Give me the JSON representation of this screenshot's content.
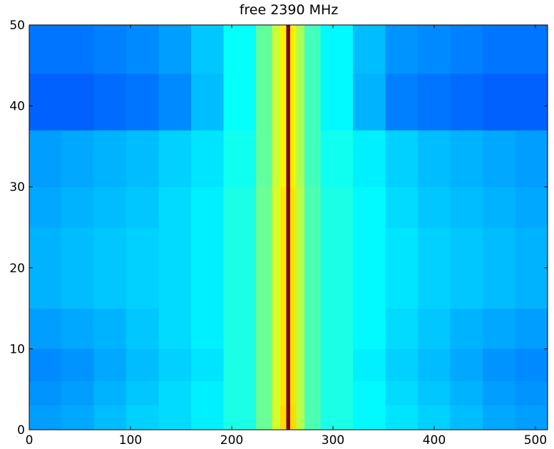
{
  "chart_data": {
    "type": "heatmap",
    "title": "free 2390 MHz",
    "colormap": "jet",
    "x_edges": [
      0,
      32,
      64,
      96,
      128,
      160,
      192,
      224,
      240,
      248,
      254,
      258,
      264,
      272,
      288,
      320,
      352,
      384,
      416,
      448,
      480,
      512
    ],
    "y_edges": [
      0,
      3,
      6,
      10,
      15,
      20,
      25,
      30,
      37,
      44,
      50
    ],
    "values": [
      [
        0.28,
        0.29,
        0.31,
        0.33,
        0.34,
        0.36,
        0.4,
        0.48,
        0.58,
        0.66,
        1.0,
        0.66,
        0.55,
        0.45,
        0.4,
        0.37,
        0.35,
        0.33,
        0.31,
        0.29,
        0.28
      ],
      [
        0.27,
        0.28,
        0.3,
        0.32,
        0.34,
        0.36,
        0.4,
        0.48,
        0.58,
        0.65,
        1.0,
        0.65,
        0.55,
        0.45,
        0.4,
        0.37,
        0.34,
        0.32,
        0.3,
        0.28,
        0.27
      ],
      [
        0.26,
        0.27,
        0.29,
        0.31,
        0.33,
        0.35,
        0.4,
        0.48,
        0.58,
        0.65,
        1.0,
        0.65,
        0.55,
        0.45,
        0.4,
        0.36,
        0.33,
        0.31,
        0.29,
        0.27,
        0.26
      ],
      [
        0.28,
        0.29,
        0.3,
        0.32,
        0.34,
        0.36,
        0.4,
        0.48,
        0.58,
        0.65,
        1.0,
        0.65,
        0.55,
        0.45,
        0.4,
        0.37,
        0.34,
        0.32,
        0.3,
        0.29,
        0.28
      ],
      [
        0.3,
        0.31,
        0.32,
        0.33,
        0.34,
        0.36,
        0.4,
        0.48,
        0.58,
        0.65,
        1.0,
        0.65,
        0.55,
        0.45,
        0.4,
        0.37,
        0.35,
        0.33,
        0.32,
        0.31,
        0.3
      ],
      [
        0.3,
        0.31,
        0.32,
        0.33,
        0.34,
        0.36,
        0.4,
        0.48,
        0.58,
        0.65,
        1.0,
        0.65,
        0.55,
        0.45,
        0.4,
        0.37,
        0.35,
        0.33,
        0.32,
        0.31,
        0.3
      ],
      [
        0.29,
        0.3,
        0.31,
        0.32,
        0.34,
        0.36,
        0.4,
        0.48,
        0.58,
        0.65,
        1.0,
        0.65,
        0.55,
        0.45,
        0.4,
        0.37,
        0.34,
        0.32,
        0.31,
        0.3,
        0.29
      ],
      [
        0.28,
        0.29,
        0.3,
        0.31,
        0.33,
        0.35,
        0.39,
        0.47,
        0.57,
        0.64,
        1.0,
        0.64,
        0.54,
        0.44,
        0.39,
        0.36,
        0.33,
        0.31,
        0.3,
        0.29,
        0.28
      ],
      [
        0.22,
        0.22,
        0.23,
        0.24,
        0.26,
        0.31,
        0.38,
        0.47,
        0.57,
        0.64,
        1.0,
        0.64,
        0.54,
        0.44,
        0.37,
        0.3,
        0.25,
        0.24,
        0.23,
        0.22,
        0.22
      ],
      [
        0.24,
        0.24,
        0.25,
        0.26,
        0.28,
        0.32,
        0.38,
        0.47,
        0.57,
        0.64,
        1.0,
        0.64,
        0.54,
        0.44,
        0.37,
        0.31,
        0.27,
        0.26,
        0.25,
        0.24,
        0.24
      ]
    ],
    "xlim": [
      0,
      512
    ],
    "xticks": [
      0,
      100,
      200,
      300,
      400,
      500
    ],
    "ylim": [
      0,
      50
    ],
    "yticks": [
      0,
      10,
      20,
      30,
      40,
      50
    ]
  }
}
